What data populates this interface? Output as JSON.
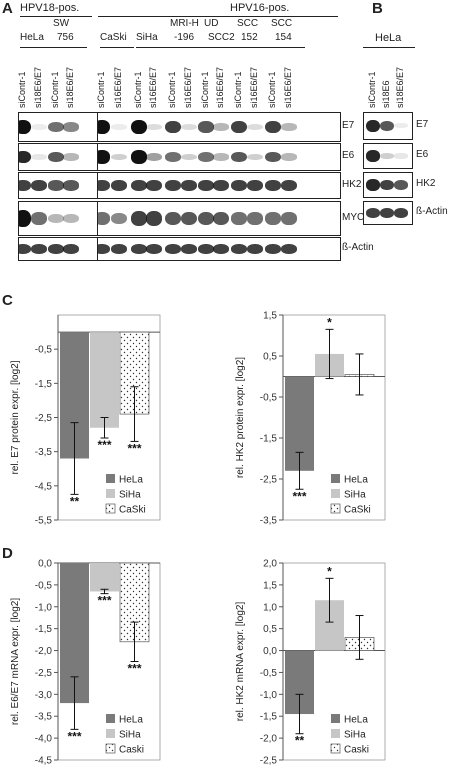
{
  "panels": {
    "A": "A",
    "B": "B",
    "C": "C",
    "D": "D"
  },
  "panelA": {
    "group_left": "HPV18-pos.",
    "group_right": "HPV16-pos.",
    "cell_lines": [
      {
        "line1": "HeLa",
        "line2": ""
      },
      {
        "line1": "SW",
        "line2": "756"
      },
      {
        "line1": "CaSki",
        "line2": ""
      },
      {
        "line1": "SiHa",
        "line2": ""
      },
      {
        "line1": "MRI-H",
        "line2": "-196"
      },
      {
        "line1": "UD",
        "line2": "SCC2"
      },
      {
        "line1": "SCC",
        "line2": "152"
      },
      {
        "line1": "SCC",
        "line2": "154"
      }
    ],
    "lanes": [
      "siContr-1",
      "si18E6/E7",
      "siContr-1",
      "si18E6/E7",
      "siContr-1",
      "si16E6/E7",
      "siContr-1",
      "si16E6/E7",
      "siContr-1",
      "si16E6/E7",
      "siContr-1",
      "si16E6/E7",
      "siContr-1",
      "si16E6/E7",
      "siContr-1",
      "si16E6/E7"
    ],
    "blots": [
      "E7",
      "E6",
      "HK2",
      "MYC",
      "ß-Actin"
    ],
    "band_levels": {
      "E7": [
        1,
        0.05,
        0.6,
        0.5,
        1,
        0.05,
        1,
        0.15,
        0.8,
        0.15,
        0.7,
        0.3,
        0.8,
        0.15,
        0.8,
        0.3
      ],
      "E6": [
        0.9,
        0.1,
        0.7,
        0.3,
        1,
        0.2,
        1,
        0.4,
        0.6,
        0.2,
        0.6,
        0.3,
        0.7,
        0.2,
        0.7,
        0.3
      ],
      "HK2": [
        0.8,
        0.8,
        0.7,
        0.7,
        0.8,
        0.8,
        0.8,
        0.8,
        0.8,
        0.8,
        0.8,
        0.8,
        0.8,
        0.8,
        0.8,
        0.8
      ],
      "MYC": [
        1,
        0.6,
        0.3,
        0.3,
        0.6,
        0.5,
        0.8,
        0.8,
        0.7,
        0.7,
        0.7,
        0.7,
        0.6,
        0.6,
        0.6,
        0.6
      ],
      "ß-Actin": [
        0.8,
        0.8,
        0.8,
        0.8,
        0.8,
        0.8,
        0.8,
        0.8,
        0.8,
        0.8,
        0.8,
        0.8,
        0.8,
        0.8,
        0.8,
        0.8
      ]
    }
  },
  "panelB": {
    "cell_line": "HeLa",
    "lanes": [
      "siContr-1",
      "si18E6",
      "si18E6/E7"
    ],
    "blots": [
      "E7",
      "E6",
      "HK2",
      "ß-Actin"
    ],
    "band_levels": {
      "E7": [
        0.9,
        0.7,
        0.05
      ],
      "E6": [
        0.9,
        0.2,
        0.1
      ],
      "HK2": [
        0.9,
        0.8,
        0.7
      ],
      "ß-Actin": [
        0.8,
        0.8,
        0.8
      ]
    }
  },
  "chart_data": [
    {
      "panel": "C",
      "type": "bar",
      "ylabel": "rel. E7 protein expr. [log2]",
      "ylim": [
        -5.5,
        0.5
      ],
      "yticks": [
        "-0,5",
        "-1,5",
        "-2,5",
        "-3,5",
        "-4,5",
        "-5,5"
      ],
      "tick_values": [
        -0.5,
        -1.5,
        -2.5,
        -3.5,
        -4.5,
        -5.5
      ],
      "series": [
        {
          "name": "HeLa",
          "value": -3.7,
          "err": 1.05,
          "sig": "**"
        },
        {
          "name": "SiHa",
          "value": -2.8,
          "err": 0.3,
          "sig": "***"
        },
        {
          "name": "CaSki",
          "value": -2.4,
          "err": 0.8,
          "sig": "***"
        }
      ],
      "legend": [
        "HeLa",
        "SiHa",
        "CaSki"
      ]
    },
    {
      "panel": "C",
      "type": "bar",
      "ylabel": "rel. HK2 protein expr. [log2]",
      "ylim": [
        -3.5,
        1.5
      ],
      "yticks": [
        "1,5",
        "0,5",
        "-0,5",
        "-1,5",
        "-2,5",
        "-3,5"
      ],
      "tick_values": [
        1.5,
        0.5,
        -0.5,
        -1.5,
        -2.5,
        -3.5
      ],
      "series": [
        {
          "name": "HeLa",
          "value": -2.3,
          "err": 0.45,
          "sig": "***"
        },
        {
          "name": "SiHa",
          "value": 0.55,
          "err": 0.6,
          "sig": "*"
        },
        {
          "name": "CaSki",
          "value": 0.05,
          "err": 0.5,
          "sig": ""
        }
      ],
      "legend": [
        "HeLa",
        "SiHa",
        "CaSki"
      ]
    },
    {
      "panel": "D",
      "type": "bar",
      "ylabel": "rel. E6/E7 mRNA expr. [log2]",
      "ylim": [
        -4.5,
        0.0
      ],
      "yticks": [
        "0,0",
        "-0,5",
        "-1,0",
        "-1,5",
        "-2,0",
        "-2,5",
        "-3,0",
        "-3,5",
        "-4,0",
        "-4,5"
      ],
      "tick_values": [
        0,
        -0.5,
        -1,
        -1.5,
        -2,
        -2.5,
        -3,
        -3.5,
        -4,
        -4.5
      ],
      "series": [
        {
          "name": "HeLa",
          "value": -3.2,
          "err": 0.6,
          "sig": "***"
        },
        {
          "name": "SiHa",
          "value": -0.65,
          "err": 0.05,
          "sig": "***"
        },
        {
          "name": "Caski",
          "value": -1.8,
          "err": 0.45,
          "sig": "***"
        }
      ],
      "legend": [
        "HeLa",
        "SiHa",
        "Caski"
      ]
    },
    {
      "panel": "D",
      "type": "bar",
      "ylabel": "rel. HK2 mRNA expr. [log2]",
      "ylim": [
        -2.5,
        2.0
      ],
      "yticks": [
        "2,0",
        "1,5",
        "1,0",
        "0,5",
        "0,0",
        "-0,5",
        "-1,0",
        "-1,5",
        "-2,0",
        "-2,5"
      ],
      "tick_values": [
        2,
        1.5,
        1,
        0.5,
        0,
        -0.5,
        -1,
        -1.5,
        -2,
        -2.5
      ],
      "series": [
        {
          "name": "HeLa",
          "value": -1.45,
          "err": 0.45,
          "sig": "**"
        },
        {
          "name": "SiHa",
          "value": 1.15,
          "err": 0.5,
          "sig": "*"
        },
        {
          "name": "Caski",
          "value": 0.3,
          "err": 0.5,
          "sig": ""
        }
      ],
      "legend": [
        "HeLa",
        "SiHa",
        "Caski"
      ]
    }
  ],
  "colors": {
    "HeLa": "#7a7a7a",
    "SiHa": "#c6c6c6",
    "Caski": "#ffffff"
  }
}
